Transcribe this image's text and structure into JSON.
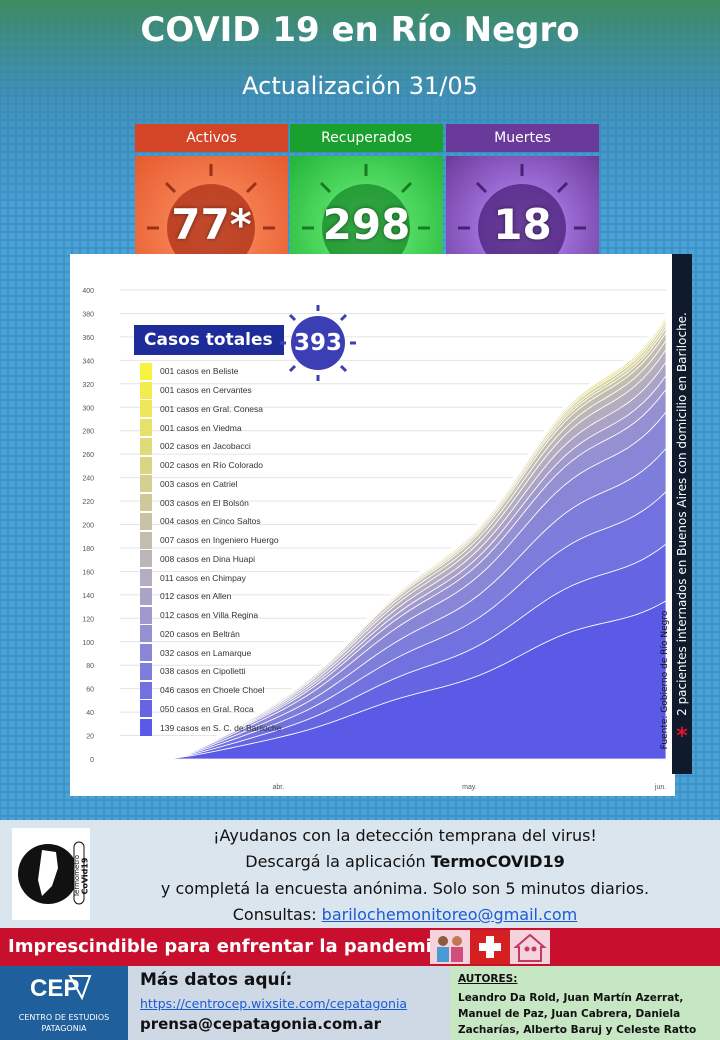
{
  "header": {
    "title": "COVID 19 en Río Negro",
    "subtitle": "Actualización  31/05"
  },
  "stats": [
    {
      "label": "Activos",
      "value": "77",
      "mark": "*",
      "color": "#d44426"
    },
    {
      "label": "Recuperados",
      "value": "298",
      "mark": "",
      "color": "#19a02e"
    },
    {
      "label": "Muertes",
      "value": "18",
      "mark": "",
      "color": "#6a3a9a"
    }
  ],
  "total": {
    "label": "Casos totales",
    "value": "393"
  },
  "chart_data": {
    "type": "area",
    "stacked": true,
    "ylim": [
      0,
      400
    ],
    "yticks": [
      "0",
      "20",
      "40",
      "60",
      "80",
      "100",
      "120",
      "140",
      "160",
      "180",
      "200",
      "220",
      "240",
      "260",
      "280",
      "300",
      "320",
      "340",
      "360",
      "380",
      "400"
    ],
    "xticks": [
      "abr.",
      "may.",
      "jun."
    ],
    "grid": true,
    "legend_position": "top-left",
    "total_at_end": 393,
    "series": [
      {
        "name": "139 casos en S. C. de Bariloche",
        "final": 139,
        "color": "#5a5ae6"
      },
      {
        "name": "050 casos en Gral. Roca",
        "final": 50,
        "color": "#6565e4"
      },
      {
        "name": "046 casos en Choele Choel",
        "final": 46,
        "color": "#7171e0"
      },
      {
        "name": "038 casos en Cipolletti",
        "final": 38,
        "color": "#7d7ddc"
      },
      {
        "name": "032 casos en Lamarque",
        "final": 32,
        "color": "#8a86d7"
      },
      {
        "name": "020 casos en Beltrán",
        "final": 20,
        "color": "#9590d2"
      },
      {
        "name": "012 casos en Villa Regina",
        "final": 12,
        "color": "#a09acc"
      },
      {
        "name": "012 casos en Allen",
        "final": 12,
        "color": "#aaa3c6"
      },
      {
        "name": "011 casos en Chimpay",
        "final": 11,
        "color": "#b3adbf"
      },
      {
        "name": "008 casos en Dina Huapi",
        "final": 8,
        "color": "#bbb6b8"
      },
      {
        "name": "007 casos en Ingeniero Huergo",
        "final": 7,
        "color": "#c2bdaf"
      },
      {
        "name": "004 casos en Cinco Saltos",
        "final": 4,
        "color": "#c8c3a6"
      },
      {
        "name": "003 casos en El Bolsón",
        "final": 3,
        "color": "#cec99b"
      },
      {
        "name": "003 casos en Catriel",
        "final": 3,
        "color": "#d4cf91"
      },
      {
        "name": "002 casos en Río Colorado",
        "final": 2,
        "color": "#dad585"
      },
      {
        "name": "002 casos en Jacobacci",
        "final": 2,
        "color": "#e0db79"
      },
      {
        "name": "001 casos en Viedma",
        "final": 1,
        "color": "#e7e16b"
      },
      {
        "name": "001 casos en Gral. Conesa",
        "final": 1,
        "color": "#ede75e"
      },
      {
        "name": "001 casos en Cervantes",
        "final": 1,
        "color": "#f3ec50"
      },
      {
        "name": "001 casos en Beliste",
        "final": 1,
        "color": "#f8f241"
      }
    ]
  },
  "notes": {
    "side": "2 pacientes internados en Buenos Aires con domicilio en Bariloche.",
    "asterisk": "*",
    "source": "Fuente: Gobierno de Río Negro"
  },
  "info": {
    "line1": "¡Ayudanos con la detección temprana del virus!",
    "line2a": "Descargá la aplicación ",
    "line2b": "TermoCOVID19",
    "line3": "y completá la encuesta anónima. Solo son 5 minutos diarios.",
    "line4a": "Consultas: ",
    "email": "barilochemonitoreo@gmail.com",
    "logo_text_1": "Termómetro",
    "logo_text_2": "CoVid19"
  },
  "banner": {
    "text": "Imprescindible para enfrentar la pandemia:"
  },
  "footer": {
    "org": "CENTRO DE ESTUDIOS PATAGONIA",
    "org_logo": "CEP",
    "more_label": "Más datos aquí:",
    "link": "https://centrocep.wixsite.com/cepatagonia",
    "press": "prensa@cepatagonia.com.ar",
    "authors_label": "AUTORES:",
    "authors": "Leandro Da Rold, Juan Martín Azerrat, Manuel de Paz, Juan Cabrera, Daniela Zacharías, Alberto Baruj y Celeste Ratto"
  }
}
